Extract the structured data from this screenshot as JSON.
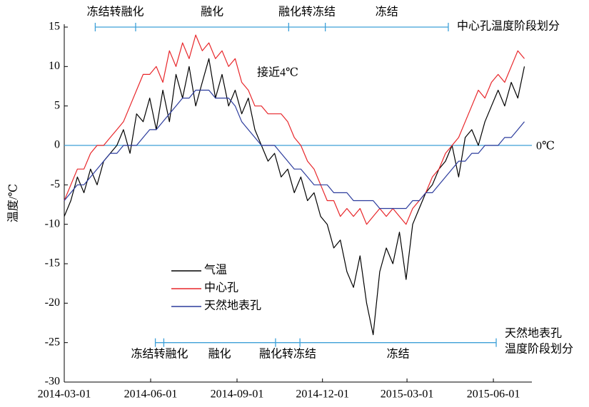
{
  "chart_data": {
    "type": "line",
    "y_label": "温度/℃",
    "x": [
      "2014-03-01",
      "2014-03-08",
      "2014-03-15",
      "2014-03-22",
      "2014-03-29",
      "2014-04-05",
      "2014-04-12",
      "2014-04-19",
      "2014-04-26",
      "2014-05-03",
      "2014-05-10",
      "2014-05-17",
      "2014-05-24",
      "2014-05-31",
      "2014-06-07",
      "2014-06-14",
      "2014-06-21",
      "2014-06-28",
      "2014-07-05",
      "2014-07-12",
      "2014-07-19",
      "2014-07-26",
      "2014-08-02",
      "2014-08-09",
      "2014-08-16",
      "2014-08-23",
      "2014-08-30",
      "2014-09-06",
      "2014-09-13",
      "2014-09-20",
      "2014-09-27",
      "2014-10-04",
      "2014-10-11",
      "2014-10-18",
      "2014-10-25",
      "2014-11-01",
      "2014-11-08",
      "2014-11-15",
      "2014-11-22",
      "2014-11-29",
      "2014-12-06",
      "2014-12-13",
      "2014-12-20",
      "2014-12-27",
      "2015-01-03",
      "2015-01-10",
      "2015-01-17",
      "2015-01-24",
      "2015-01-31",
      "2015-02-07",
      "2015-02-14",
      "2015-02-21",
      "2015-02-28",
      "2015-03-07",
      "2015-03-14",
      "2015-03-21",
      "2015-03-28",
      "2015-04-04",
      "2015-04-11",
      "2015-04-18",
      "2015-04-25",
      "2015-05-02",
      "2015-05-09",
      "2015-05-16",
      "2015-05-23",
      "2015-05-30",
      "2015-06-06",
      "2015-06-13",
      "2015-06-20",
      "2015-06-27",
      "2015-07-04"
    ],
    "series": [
      {
        "name": "气温",
        "color": "#000000",
        "values": [
          -9,
          -7,
          -4,
          -6,
          -3,
          -5,
          -2,
          -1,
          0,
          2,
          -1,
          4,
          3,
          6,
          2,
          7,
          3,
          9,
          6,
          10,
          5,
          8,
          11,
          6,
          9,
          5,
          7,
          4,
          6,
          2,
          0,
          -2,
          -1,
          -4,
          -3,
          -6,
          -4,
          -7,
          -6,
          -9,
          -10,
          -13,
          -12,
          -16,
          -18,
          -14,
          -20,
          -24,
          -16,
          -13,
          -15,
          -11,
          -17,
          -10,
          -8,
          -6,
          -5,
          -3,
          -2,
          0,
          -4,
          1,
          2,
          0,
          3,
          5,
          7,
          5,
          8,
          6,
          10
        ]
      },
      {
        "name": "中心孔",
        "color": "#e8262a",
        "values": [
          -7,
          -5,
          -3,
          -3,
          -1,
          0,
          0,
          1,
          2,
          3,
          5,
          7,
          9,
          9,
          10,
          8,
          12,
          10,
          13,
          11,
          14,
          12,
          13,
          11,
          12,
          10,
          11,
          8,
          7,
          5,
          5,
          4,
          4,
          4,
          3,
          1,
          0,
          -2,
          -3,
          -5,
          -7,
          -7,
          -9,
          -8,
          -9,
          -8,
          -10,
          -9,
          -8,
          -9,
          -8,
          -9,
          -10,
          -8,
          -7,
          -6,
          -4,
          -3,
          -1,
          0,
          1,
          3,
          5,
          7,
          6,
          8,
          9,
          8,
          10,
          12,
          11
        ]
      },
      {
        "name": "天然地表孔",
        "color": "#2b3b9c",
        "values": [
          -7,
          -6,
          -5,
          -5,
          -4,
          -3,
          -2,
          -1,
          -1,
          0,
          0,
          0,
          1,
          2,
          2,
          3,
          4,
          5,
          6,
          6,
          7,
          7,
          7,
          6,
          6,
          6,
          5,
          3,
          2,
          1,
          0,
          0,
          0,
          -1,
          -2,
          -3,
          -3,
          -4,
          -5,
          -5,
          -5,
          -6,
          -6,
          -6,
          -7,
          -7,
          -7,
          -7,
          -8,
          -8,
          -8,
          -8,
          -8,
          -7,
          -7,
          -6,
          -6,
          -5,
          -4,
          -3,
          -2,
          -2,
          -1,
          -1,
          0,
          0,
          0,
          1,
          1,
          2,
          3
        ]
      }
    ],
    "xlim": [
      "2014-03-01",
      "2015-07-12"
    ],
    "xticks": [
      "2014-03-01",
      "2014-06-01",
      "2014-09-01",
      "2014-12-01",
      "2015-03-01",
      "2015-06-01"
    ],
    "ylim": [
      -30,
      15
    ],
    "yticks": [
      15,
      10,
      5,
      0,
      -5,
      -10,
      -15,
      -20,
      -25,
      -30
    ],
    "legend": "lower left",
    "reference_line": {
      "value": 0,
      "label": "0℃",
      "color": "#3ea0d8"
    },
    "annotation": "接近4℃",
    "center_stages": {
      "label": "中心孔温度阶段划分",
      "level": 15,
      "color": "#3ea0d8",
      "boundaries": [
        "2014-04-03",
        "2014-05-16",
        "2014-10-26",
        "2014-12-04",
        "2015-04-14"
      ],
      "phases": [
        "冻结转融化",
        "融化",
        "融化转冻结",
        "冻结"
      ]
    },
    "ground_stages": {
      "label": [
        "天然地表孔",
        "温度阶段划分"
      ],
      "level": -25,
      "color": "#3ea0d8",
      "boundaries": [
        "2014-06-06",
        "2014-06-15",
        "2014-10-12",
        "2014-11-07",
        "2015-06-04"
      ],
      "phases": [
        "冻结转融化",
        "融化",
        "融化转冻结",
        "冻结"
      ]
    }
  }
}
